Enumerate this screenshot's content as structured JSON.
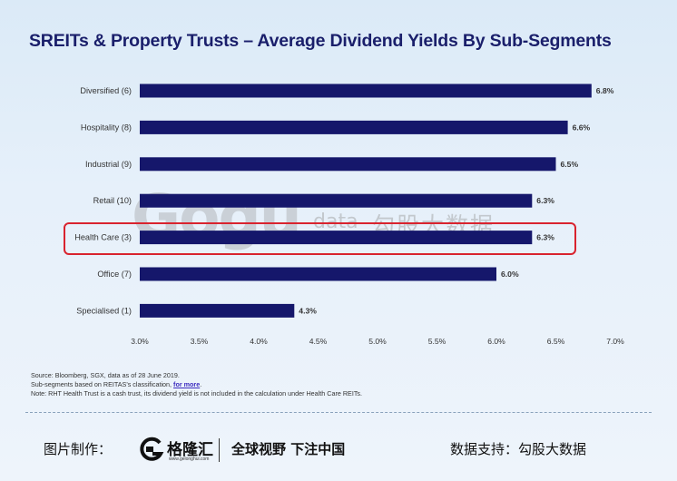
{
  "title": "SREITs & Property Trusts – Average Dividend Yields By Sub-Segments",
  "chart_data": {
    "type": "bar",
    "orientation": "horizontal",
    "categories": [
      "Diversified (6)",
      "Hospitality (8)",
      "Industrial (9)",
      "Retail (10)",
      "Health Care (3)",
      "Office (7)",
      "Specialised (1)"
    ],
    "values": [
      6.8,
      6.6,
      6.5,
      6.3,
      6.3,
      6.0,
      4.3
    ],
    "value_labels": [
      "6.8%",
      "6.6%",
      "6.5%",
      "6.3%",
      "6.3%",
      "6.0%",
      "4.3%"
    ],
    "xlim": [
      3.0,
      7.0
    ],
    "x_ticks": [
      3.0,
      3.5,
      4.0,
      4.5,
      5.0,
      5.5,
      6.0,
      6.5,
      7.0
    ],
    "x_tick_labels": [
      "3.0%",
      "3.5%",
      "4.0%",
      "4.5%",
      "5.0%",
      "5.5%",
      "6.0%",
      "6.5%",
      "7.0%"
    ],
    "bar_color": "#15176b",
    "highlighted_category": "Health Care (3)",
    "highlight_color": "#d9232e",
    "grid": false
  },
  "watermark": {
    "logo": "Gogu",
    "data": "data",
    "cn": "勾股大数据"
  },
  "notes": {
    "line1": "Source: Bloomberg, SGX, data as of 28 June 2019.",
    "line2_prefix": "Sub-segments based on REITAS's classification, ",
    "line2_link": "for more",
    "line2_suffix": ".",
    "line3": "Note: RHT Health Trust is a cash trust, its dividend yield is not included in the calculation under Health Care REITs."
  },
  "footer": {
    "made_by_label": "图片制作：",
    "brand_name": "格隆汇",
    "brand_url": "www.gelonghui.com",
    "slogan": "全球视野 下注中国",
    "data_support": "数据支持：勾股大数据"
  }
}
